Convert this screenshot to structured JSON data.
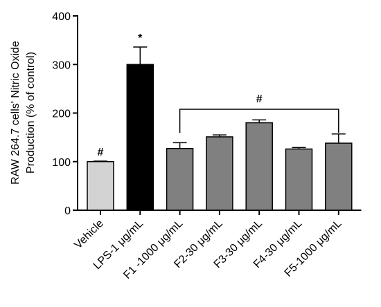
{
  "chart_data": {
    "type": "bar",
    "ylabel_lines": [
      "RAW 264.7 cells' Nitric Oxide",
      "Production (% of control)"
    ],
    "ylim": [
      0,
      400
    ],
    "yticks": [
      0,
      100,
      200,
      300,
      400
    ],
    "categories": [
      "Vehicle",
      "LPS-1 μg/mL",
      "F1 -1000 μg/mL",
      "F2-30 μg/mL",
      "F3-30 μg/mL",
      "F4-30 μg/mL",
      "F5-1000 μg/mL"
    ],
    "values": [
      100,
      300,
      127,
      151,
      180,
      126,
      138
    ],
    "errors": [
      1,
      36,
      12,
      4,
      6,
      3,
      19
    ],
    "bar_colors": [
      "#d3d3d3",
      "#000000",
      "#808080",
      "#808080",
      "#808080",
      "#808080",
      "#808080"
    ],
    "annotations": [
      {
        "category_index": 0,
        "text": "#"
      },
      {
        "category_index": 1,
        "text": "*"
      }
    ],
    "bracket": {
      "from_index": 2,
      "to_index": 6,
      "text": "#"
    }
  }
}
